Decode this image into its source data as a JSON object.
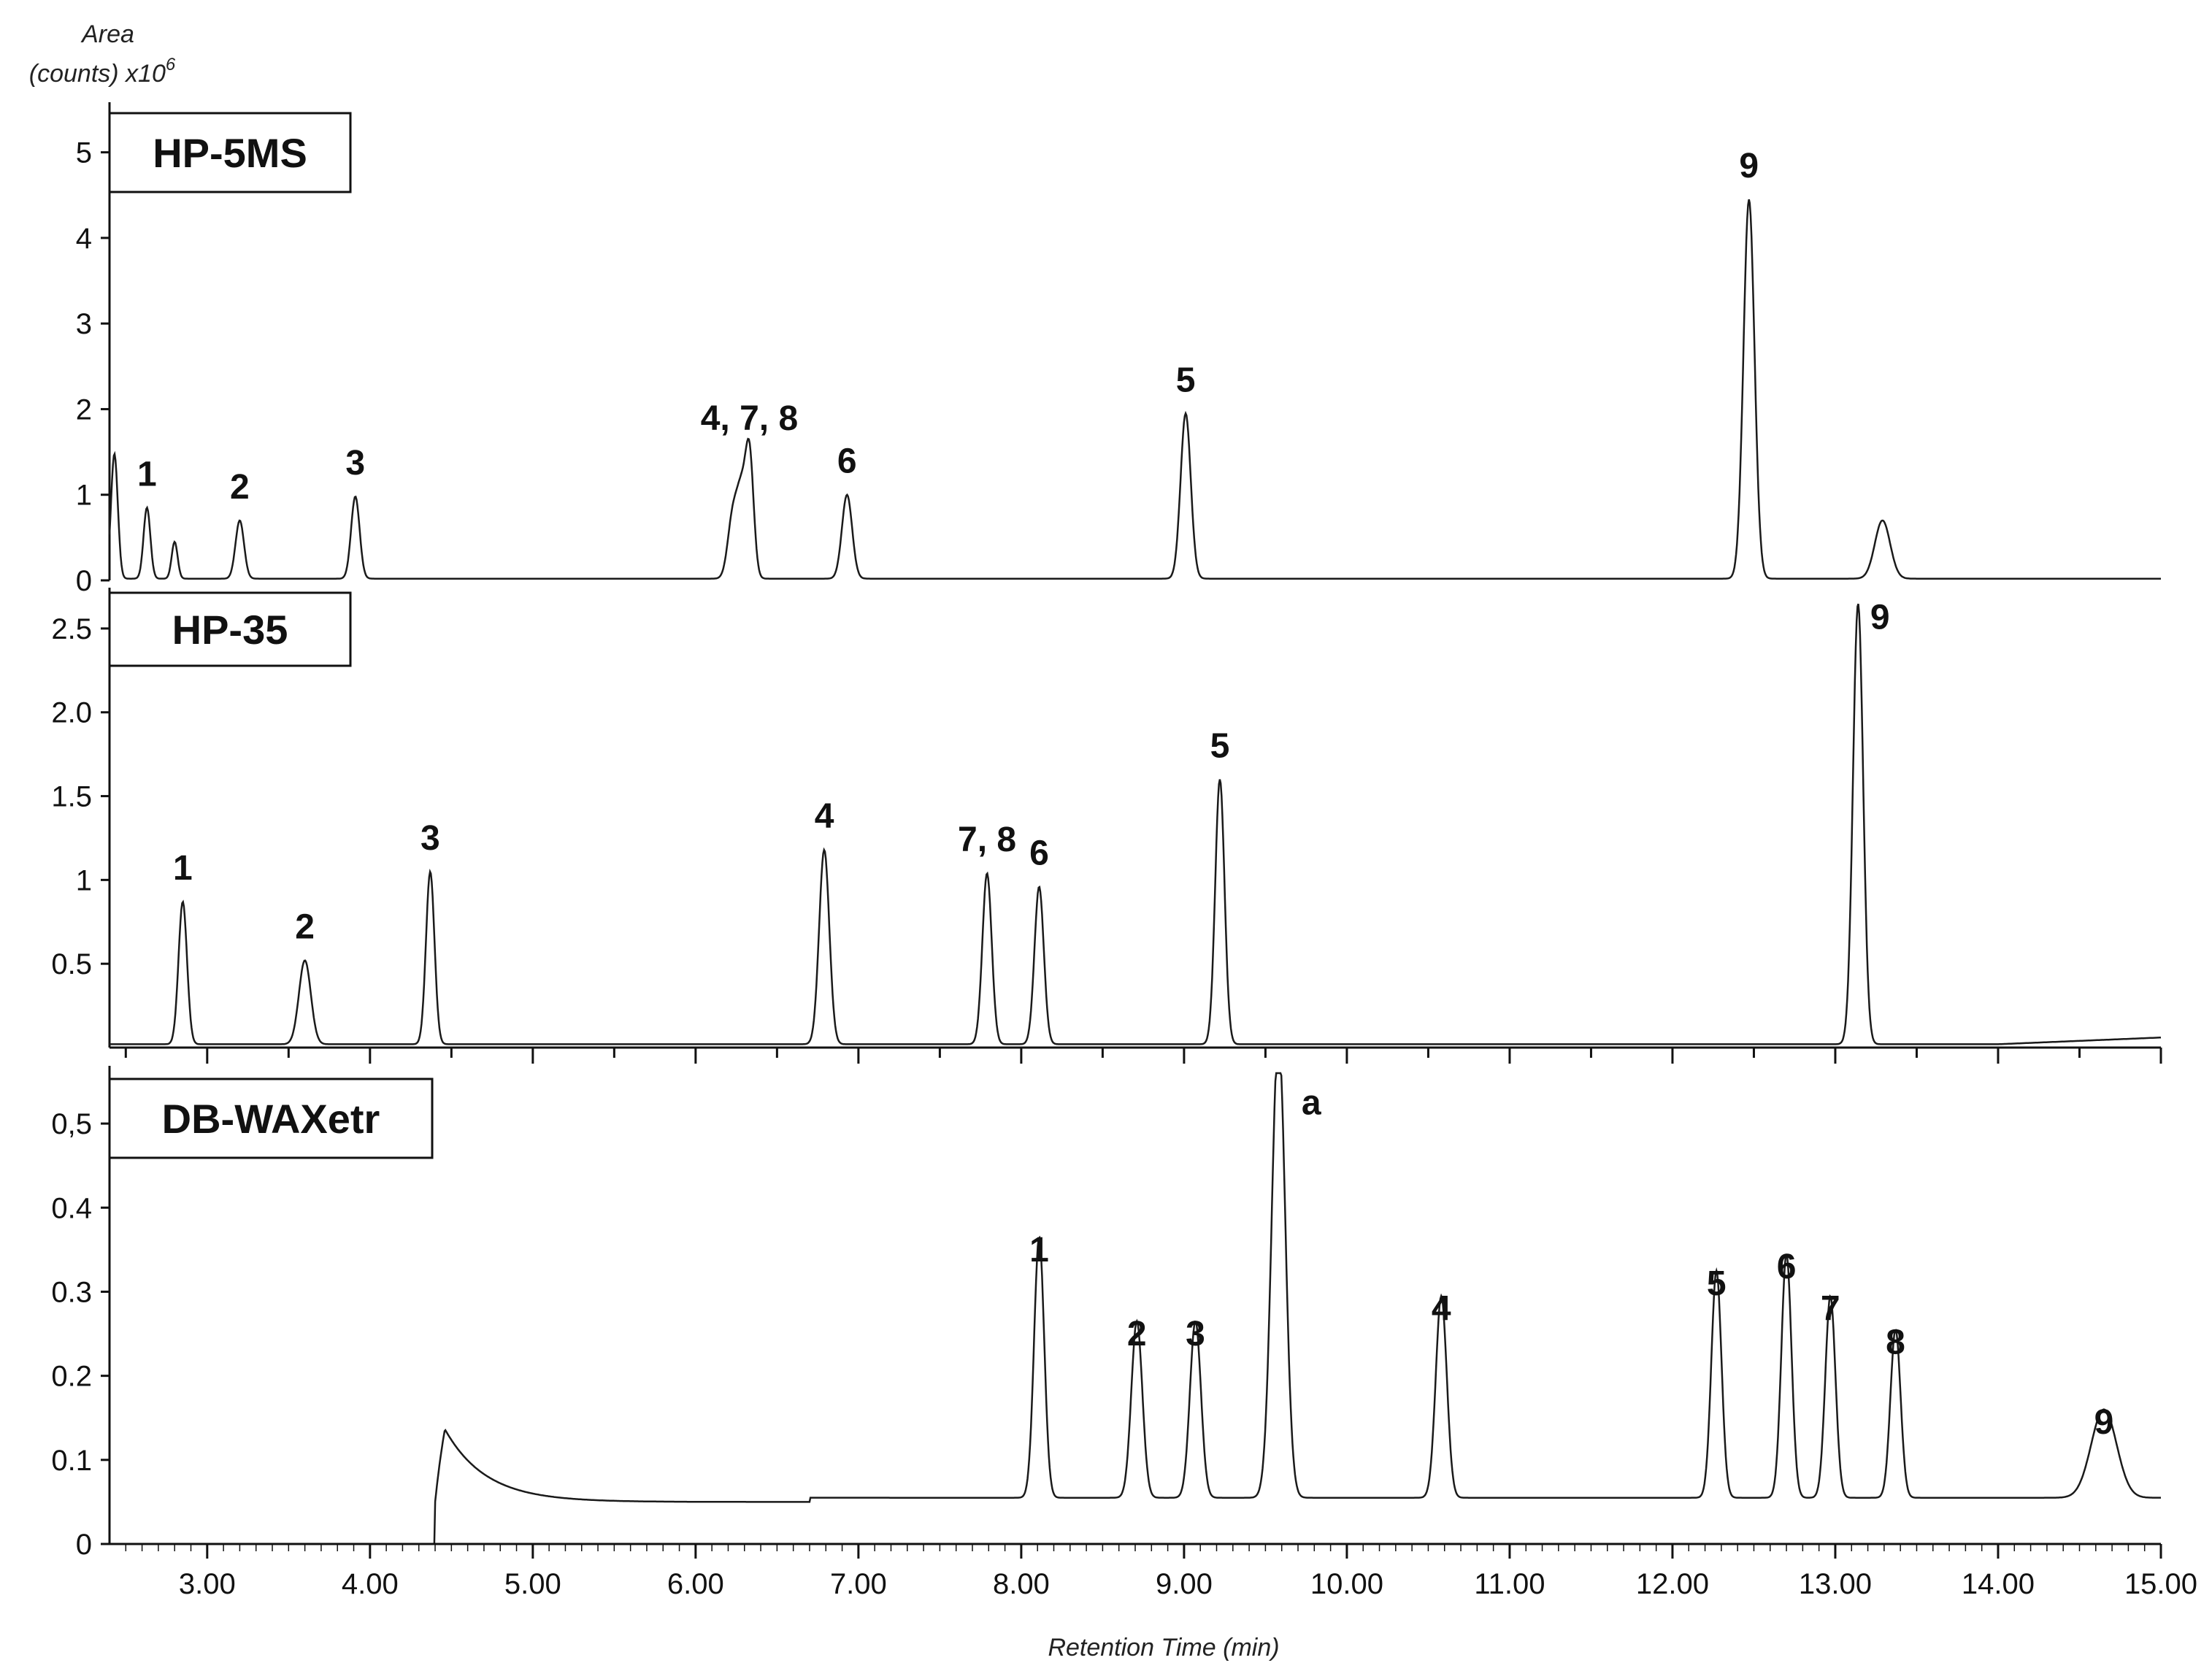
{
  "y_axis_label": {
    "line1": "Area",
    "line2": "(counts) x10",
    "sup": "6"
  },
  "x_axis_label": "Retention Time (min)",
  "x_ticks": [
    "3.00",
    "4.00",
    "5.00",
    "6.00",
    "7.00",
    "8.00",
    "9.00",
    "10.00",
    "11.00",
    "12.00",
    "13.00",
    "14.00",
    "15.00"
  ],
  "chart_data": [
    {
      "type": "line",
      "column": "HP-5MS",
      "xlim": [
        2.4,
        15.0
      ],
      "ylim": [
        0,
        5.5
      ],
      "yticks": [
        "0",
        "1",
        "2",
        "3",
        "4",
        "5"
      ],
      "yticks_values": [
        0,
        1,
        2,
        3,
        4,
        5
      ],
      "baseline": 0.02,
      "peaks": [
        {
          "label": "",
          "rt": 2.43,
          "height": 1.48,
          "width": 0.008
        },
        {
          "label": "1",
          "rt": 2.63,
          "height": 0.85,
          "width": 0.008
        },
        {
          "label": "",
          "rt": 2.8,
          "height": 0.45,
          "width": 0.007
        },
        {
          "label": "2",
          "rt": 3.2,
          "height": 0.7,
          "width": 0.01
        },
        {
          "label": "3",
          "rt": 3.91,
          "height": 0.98,
          "width": 0.01
        },
        {
          "label": "",
          "rt": 6.23,
          "height": 0.78,
          "width": 0.012
        },
        {
          "label": "",
          "rt": 6.28,
          "height": 0.8,
          "width": 0.01
        },
        {
          "label": "4, 7, 8",
          "rt": 6.33,
          "height": 1.5,
          "width": 0.01
        },
        {
          "label": "6",
          "rt": 6.93,
          "height": 1.0,
          "width": 0.012
        },
        {
          "label": "5",
          "rt": 9.01,
          "height": 1.95,
          "width": 0.012
        },
        {
          "label": "9",
          "rt": 12.47,
          "height": 4.45,
          "width": 0.013
        },
        {
          "label": "",
          "rt": 13.29,
          "height": 0.7,
          "width": 0.018
        }
      ]
    },
    {
      "type": "line",
      "column": "HP-35",
      "xlim": [
        2.4,
        15.0
      ],
      "ylim": [
        0,
        2.7
      ],
      "yticks": [
        "0.5",
        "1",
        "1.5",
        "2.0",
        "2.5"
      ],
      "yticks_values": [
        0.5,
        1,
        1.5,
        2.0,
        2.5
      ],
      "baseline": 0.02,
      "peaks": [
        {
          "label": "1",
          "rt": 2.85,
          "height": 0.87,
          "width": 0.01
        },
        {
          "label": "2",
          "rt": 3.6,
          "height": 0.52,
          "width": 0.014
        },
        {
          "label": "3",
          "rt": 4.37,
          "height": 1.05,
          "width": 0.01
        },
        {
          "label": "4",
          "rt": 6.79,
          "height": 1.18,
          "width": 0.012
        },
        {
          "label": "7, 8",
          "rt": 7.79,
          "height": 1.04,
          "width": 0.011
        },
        {
          "label": "6",
          "rt": 8.11,
          "height": 0.96,
          "width": 0.011
        },
        {
          "label": "5",
          "rt": 9.22,
          "height": 1.6,
          "width": 0.011
        },
        {
          "label": "9",
          "rt": 13.14,
          "height": 2.65,
          "width": 0.012
        }
      ]
    },
    {
      "type": "line",
      "column": "DB-WAXetr",
      "xlim": [
        2.4,
        15.0
      ],
      "ylim": [
        0,
        0.56
      ],
      "yticks": [
        "0",
        "0.1",
        "0.2",
        "0.3",
        "0.4",
        "0,5"
      ],
      "yticks_values": [
        0,
        0.1,
        0.2,
        0.3,
        0.4,
        0.5
      ],
      "baseline": 0.0,
      "peaks": [
        {
          "label": "1",
          "rt": 8.11,
          "height": 0.31,
          "width": 0.012
        },
        {
          "label": "2",
          "rt": 8.71,
          "height": 0.21,
          "width": 0.013
        },
        {
          "label": "3",
          "rt": 9.07,
          "height": 0.21,
          "width": 0.013
        },
        {
          "label": "a",
          "rt": 9.58,
          "height": 0.55,
          "width": 0.016
        },
        {
          "label": "4",
          "rt": 10.58,
          "height": 0.24,
          "width": 0.013
        },
        {
          "label": "5",
          "rt": 12.27,
          "height": 0.27,
          "width": 0.012
        },
        {
          "label": "6",
          "rt": 12.7,
          "height": 0.29,
          "width": 0.012
        },
        {
          "label": "7",
          "rt": 12.97,
          "height": 0.24,
          "width": 0.012
        },
        {
          "label": "8",
          "rt": 13.37,
          "height": 0.2,
          "width": 0.012
        },
        {
          "label": "9",
          "rt": 14.65,
          "height": 0.105,
          "width": 0.03
        }
      ]
    }
  ],
  "colors": {
    "trace": "#1a1a1a",
    "axis": "#111111"
  }
}
